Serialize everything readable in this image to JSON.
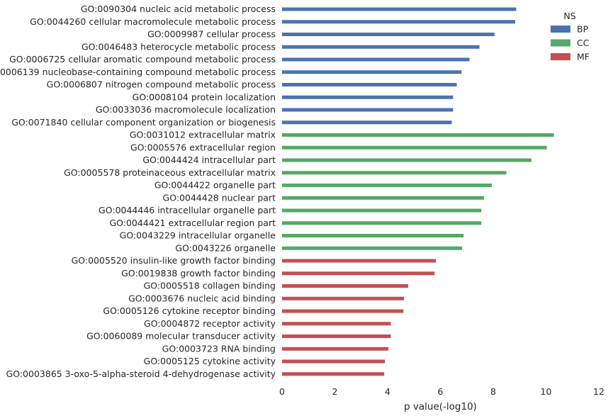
{
  "chart_data": {
    "type": "bar",
    "orientation": "horizontal",
    "title": "",
    "xlabel": "p value(-log10)",
    "ylabel": "",
    "xlim": [
      0,
      12
    ],
    "xticks": [
      "0",
      "2",
      "4",
      "6",
      "8",
      "10",
      "12"
    ],
    "grid": false,
    "legend": {
      "title": "NS",
      "placement": "top-right",
      "entries": [
        {
          "name": "BP",
          "color": "#4c72b0"
        },
        {
          "name": "CC",
          "color": "#55a868"
        },
        {
          "name": "MF",
          "color": "#c44e52"
        }
      ]
    },
    "bars": [
      {
        "label": "GO:0090304 nucleic acid metabolic process",
        "value": 8.87,
        "ns": "BP"
      },
      {
        "label": "GO:0044260 cellular macromolecule metabolic process",
        "value": 8.83,
        "ns": "BP"
      },
      {
        "label": "GO:0009987 cellular process",
        "value": 8.05,
        "ns": "BP"
      },
      {
        "label": "GO:0046483 heterocycle metabolic process",
        "value": 7.48,
        "ns": "BP"
      },
      {
        "label": "GO:0006725 cellular aromatic compound metabolic process",
        "value": 7.1,
        "ns": "BP"
      },
      {
        "label": "GO:0006139 nucleobase-containing compound metabolic process",
        "value": 6.8,
        "ns": "BP"
      },
      {
        "label": "GO:0006807 nitrogen compound metabolic process",
        "value": 6.62,
        "ns": "BP"
      },
      {
        "label": "GO:0008104 protein localization",
        "value": 6.48,
        "ns": "BP"
      },
      {
        "label": "GO:0033036 macromolecule localization",
        "value": 6.48,
        "ns": "BP"
      },
      {
        "label": "GO:0071840 cellular component organization or biogenesis",
        "value": 6.43,
        "ns": "BP"
      },
      {
        "label": "GO:0031012 extracellular matrix",
        "value": 10.3,
        "ns": "CC"
      },
      {
        "label": "GO:0005576 extracellular region",
        "value": 10.03,
        "ns": "CC"
      },
      {
        "label": "GO:0044424 intracellular part",
        "value": 9.45,
        "ns": "CC"
      },
      {
        "label": "GO:0005578 proteinaceous extracellular matrix",
        "value": 8.5,
        "ns": "CC"
      },
      {
        "label": "GO:0044422 organelle part",
        "value": 7.95,
        "ns": "CC"
      },
      {
        "label": "GO:0044428 nuclear part",
        "value": 7.65,
        "ns": "CC"
      },
      {
        "label": "GO:0044446 intracellular organelle part",
        "value": 7.55,
        "ns": "CC"
      },
      {
        "label": "GO:0044421 extracellular region part",
        "value": 7.55,
        "ns": "CC"
      },
      {
        "label": "GO:0043229 intracellular organelle",
        "value": 6.88,
        "ns": "CC"
      },
      {
        "label": "GO:0043226 organelle",
        "value": 6.82,
        "ns": "CC"
      },
      {
        "label": "GO:0005520 insulin-like growth factor binding",
        "value": 5.83,
        "ns": "MF"
      },
      {
        "label": "GO:0019838 growth factor binding",
        "value": 5.78,
        "ns": "MF"
      },
      {
        "label": "GO:0005518 collagen binding",
        "value": 4.78,
        "ns": "MF"
      },
      {
        "label": "GO:0003676 nucleic acid binding",
        "value": 4.62,
        "ns": "MF"
      },
      {
        "label": "GO:0005126 cytokine receptor binding",
        "value": 4.6,
        "ns": "MF"
      },
      {
        "label": "GO:0004872 receptor activity",
        "value": 4.12,
        "ns": "MF"
      },
      {
        "label": "GO:0060089 molecular transducer activity",
        "value": 4.12,
        "ns": "MF"
      },
      {
        "label": "GO:0003723 RNA binding",
        "value": 4.03,
        "ns": "MF"
      },
      {
        "label": "GO:0005125 cytokine activity",
        "value": 3.9,
        "ns": "MF"
      },
      {
        "label": "GO:0003865 3-oxo-5-alpha-steroid 4-dehydrogenase activity",
        "value": 3.87,
        "ns": "MF"
      }
    ]
  }
}
